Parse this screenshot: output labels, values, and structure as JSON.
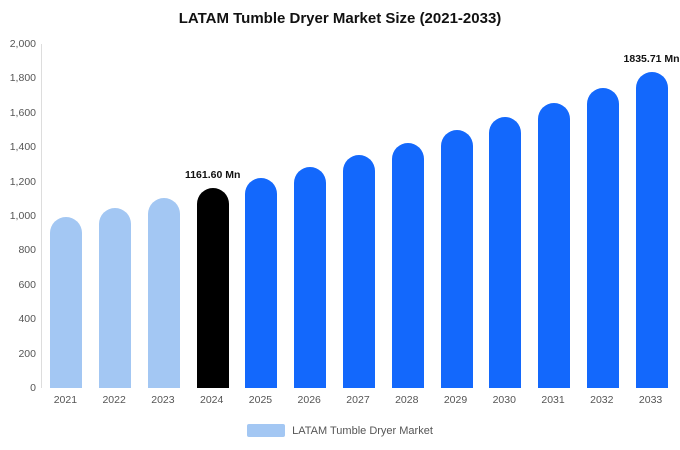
{
  "chart_data": {
    "type": "bar",
    "title": "LATAM Tumble Dryer Market Size (2021-2033)",
    "categories": [
      "2021",
      "2022",
      "2023",
      "2024",
      "2025",
      "2026",
      "2027",
      "2028",
      "2029",
      "2030",
      "2031",
      "2032",
      "2033"
    ],
    "values": [
      997,
      1049,
      1104,
      1161.6,
      1222,
      1286,
      1353,
      1424,
      1498,
      1576,
      1659,
      1745,
      1835.71
    ],
    "bar_colors": [
      "#a3c7f3",
      "#a3c7f3",
      "#a3c7f3",
      "#000000",
      "#1368fc",
      "#1368fc",
      "#1368fc",
      "#1368fc",
      "#1368fc",
      "#1368fc",
      "#1368fc",
      "#1368fc",
      "#1368fc"
    ],
    "annotations": [
      {
        "index": 3,
        "text": "1161.60 Mn"
      },
      {
        "index": 12,
        "text": "1835.71 Mn"
      }
    ],
    "ylim": [
      0,
      2000
    ],
    "ytick_step": 200,
    "grid": false,
    "legend_position": "bottom",
    "legend": [
      {
        "label": "LATAM Tumble Dryer Market",
        "color": "#a3c7f3"
      }
    ],
    "colors": {
      "historical": "#a3c7f3",
      "base_year": "#000000",
      "forecast": "#1368fc"
    }
  }
}
